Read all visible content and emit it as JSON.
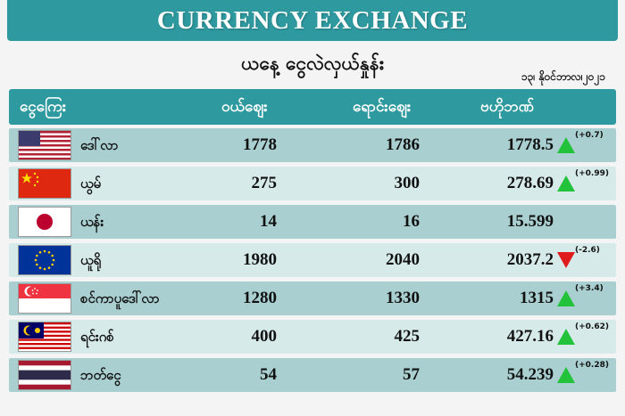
{
  "banner": {
    "title": "CURRENCY EXCHANGE"
  },
  "subtitle": "ယနေ့ ငွေလဲလှယ်နှုန်း",
  "date": "၁၃၊ နိုဝင်ဘာလ၊၂၀၂၁",
  "headers": {
    "currency": "ငွေကြေး",
    "buy": "ဝယ်ဈေး",
    "sell": "ရောင်းဈေး",
    "average": "ဗဟိုဘဏ်"
  },
  "colors": {
    "teal": "#2e9aa0",
    "row_dark": "#a9cfd0",
    "row_light": "#d7eaea",
    "up": "#22c33a",
    "down": "#e01b1b"
  },
  "rows": [
    {
      "flag": "us-flag-icon",
      "name": "ဒေါ်လာ",
      "buy": "1778",
      "sell": "1786",
      "avg": "1778.5",
      "trend": "up",
      "change": "(+0.7)"
    },
    {
      "flag": "china-flag-icon",
      "name": "ယွမ်",
      "buy": "275",
      "sell": "300",
      "avg": "278.69",
      "trend": "up",
      "change": "(+0.99)"
    },
    {
      "flag": "japan-flag-icon",
      "name": "ယန်း",
      "buy": "14",
      "sell": "16",
      "avg": "15.599",
      "trend": "none",
      "change": ""
    },
    {
      "flag": "eu-flag-icon",
      "name": "ယူရို",
      "buy": "1980",
      "sell": "2040",
      "avg": "2037.2",
      "trend": "down",
      "change": "(-2.6)"
    },
    {
      "flag": "singapore-flag-icon",
      "name": "စင်ကာပူဒေါ်လာ",
      "buy": "1280",
      "sell": "1330",
      "avg": "1315",
      "trend": "up",
      "change": "(+3.4)"
    },
    {
      "flag": "malaysia-flag-icon",
      "name": "ရင်းဂစ်",
      "buy": "400",
      "sell": "425",
      "avg": "427.16",
      "trend": "up",
      "change": "(+0.62)"
    },
    {
      "flag": "thailand-flag-icon",
      "name": "ဘတ်ငွေ",
      "buy": "54",
      "sell": "57",
      "avg": "54.239",
      "trend": "up",
      "change": "(+0.28)"
    }
  ]
}
